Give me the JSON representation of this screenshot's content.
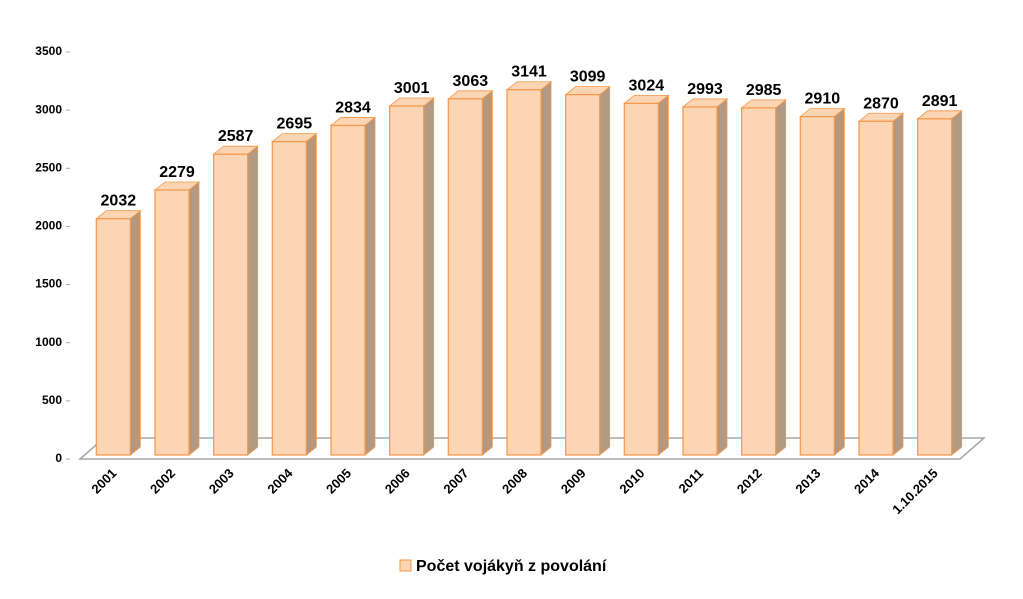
{
  "chart_data": {
    "type": "bar3d",
    "categories": [
      "2001",
      "2002",
      "2003",
      "2004",
      "2005",
      "2006",
      "2007",
      "2008",
      "2009",
      "2010",
      "2011",
      "2012",
      "2013",
      "2014",
      "1.10.2015"
    ],
    "series": [
      {
        "name": "Počet vojákyň z povolání",
        "color": "#fcd5b4",
        "edge_color": "#f79646",
        "values": [
          2032,
          2279,
          2587,
          2695,
          2834,
          3001,
          3063,
          3141,
          3099,
          3024,
          2993,
          2985,
          2910,
          2870,
          2891
        ]
      }
    ],
    "ylim": [
      0,
      3500
    ],
    "yticks": [
      0,
      500,
      1000,
      1500,
      2000,
      2500,
      3000,
      3500
    ],
    "legend": "bottom"
  }
}
